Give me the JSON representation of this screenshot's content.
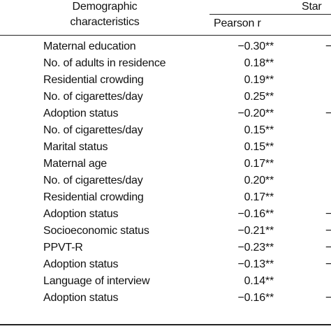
{
  "table": {
    "header": {
      "col1_line1": "Demographic",
      "col1_line2": "characteristics",
      "group": "Star",
      "col2": "Pearson r"
    },
    "rows": [
      [
        "Maternal education",
        "−0.30**",
        "−"
      ],
      [
        "No. of adults in residence",
        "0.18**"
      ],
      [
        "Residential crowding",
        "0.19**"
      ],
      [
        "No. of cigarettes/day",
        "0.25**"
      ],
      [
        "Adoption status",
        "−0.20**",
        "−"
      ],
      [
        "No. of cigarettes/day",
        "0.15**"
      ],
      [
        "Marital status",
        "0.15**"
      ],
      [
        "Maternal age",
        "0.17**"
      ],
      [
        "No. of cigarettes/day",
        "0.20**"
      ],
      [
        "Residential crowding",
        "0.17**"
      ],
      [
        "Adoption status",
        "−0.16**",
        "−"
      ],
      [
        "Socioeconomic status",
        "−0.21**",
        "−"
      ],
      [
        "PPVT-R",
        "−0.23**",
        "−"
      ],
      [
        "Adoption status",
        "−0.13**",
        "−"
      ],
      [
        "Language of interview",
        "0.14**"
      ],
      [
        "Adoption status",
        "−0.16**",
        "−"
      ]
    ]
  }
}
